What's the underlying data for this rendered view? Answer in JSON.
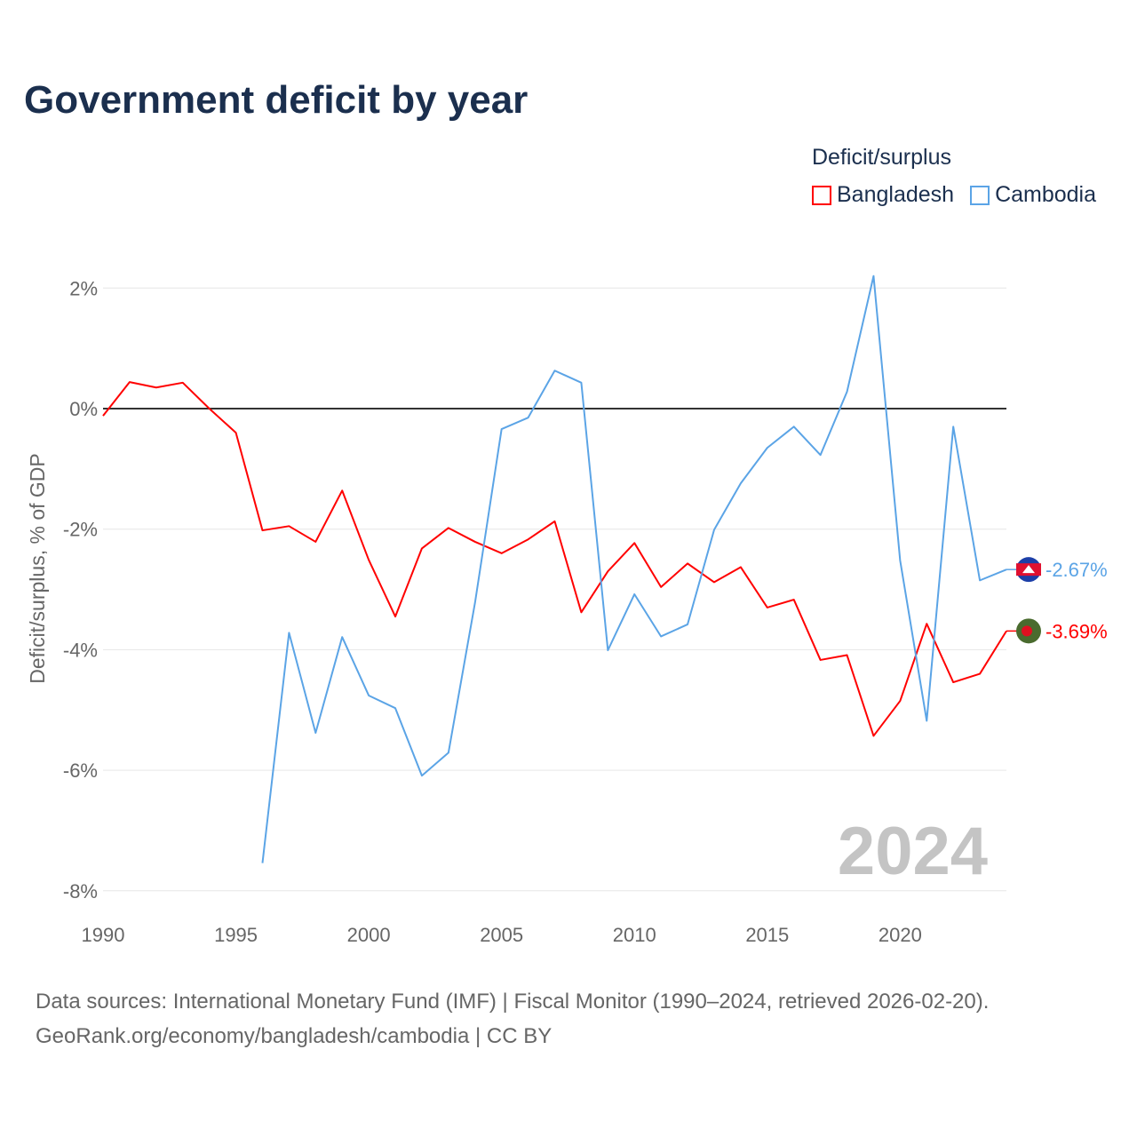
{
  "title": "Government deficit by year",
  "legend": {
    "title": "Deficit/surplus",
    "items": [
      {
        "label": "Bangladesh",
        "color": "#ff0000"
      },
      {
        "label": "Cambodia",
        "color": "#5ba4e6"
      }
    ]
  },
  "watermark_year": "2024",
  "source_line1": "Data sources: International Monetary Fund (IMF) | Fiscal Monitor (1990–2024, retrieved 2026-02-20).",
  "source_line2": "GeoRank.org/economy/bangladesh/cambodia | CC BY",
  "chart_data": {
    "type": "line",
    "title": "Government deficit by year",
    "xlabel": "",
    "ylabel": "Deficit/surplus, % of GDP",
    "xlim": [
      1990,
      2024
    ],
    "ylim": [
      -8,
      2
    ],
    "x_ticks": [
      1990,
      1995,
      2000,
      2005,
      2010,
      2015,
      2020
    ],
    "x_tick_labels": [
      "1990",
      "1995",
      "2000",
      "2005",
      "2010",
      "2015",
      "2020"
    ],
    "y_ticks": [
      2,
      0,
      -2,
      -4,
      -6,
      -8
    ],
    "y_tick_labels": [
      "2%",
      "0%",
      "-2%",
      "-4%",
      "-6%",
      "-8%"
    ],
    "grid": true,
    "legend_position": "top-right",
    "series": [
      {
        "name": "Bangladesh",
        "color": "#ff0000",
        "end_label": "-3.69%",
        "x": [
          1990,
          1991,
          1992,
          1993,
          1994,
          1995,
          1996,
          1997,
          1998,
          1999,
          2000,
          2001,
          2002,
          2003,
          2004,
          2005,
          2006,
          2007,
          2008,
          2009,
          2010,
          2011,
          2012,
          2013,
          2014,
          2015,
          2016,
          2017,
          2018,
          2019,
          2020,
          2021,
          2022,
          2023,
          2024
        ],
        "values": [
          -0.12,
          0.44,
          0.35,
          0.43,
          0.0,
          -0.4,
          -2.02,
          -1.95,
          -2.21,
          -1.36,
          -2.51,
          -3.45,
          -2.32,
          -1.98,
          -2.21,
          -2.4,
          -2.17,
          -1.87,
          -3.38,
          -2.7,
          -2.23,
          -2.96,
          -2.57,
          -2.88,
          -2.63,
          -3.3,
          -3.17,
          -4.17,
          -4.09,
          -5.43,
          -4.85,
          -3.57,
          -4.54,
          -4.4,
          -3.69
        ]
      },
      {
        "name": "Cambodia",
        "color": "#5ba4e6",
        "end_label": "-2.67%",
        "x": [
          1996,
          1997,
          1998,
          1999,
          2000,
          2001,
          2002,
          2003,
          2004,
          2005,
          2006,
          2007,
          2008,
          2009,
          2010,
          2011,
          2012,
          2013,
          2014,
          2015,
          2016,
          2017,
          2018,
          2019,
          2020,
          2021,
          2022,
          2023,
          2024
        ],
        "values": [
          -7.54,
          -3.72,
          -5.38,
          -3.79,
          -4.76,
          -4.97,
          -6.09,
          -5.71,
          -3.22,
          -0.34,
          -0.15,
          0.63,
          0.43,
          -4.01,
          -3.08,
          -3.78,
          -3.58,
          -2.01,
          -1.24,
          -0.65,
          -0.3,
          -0.77,
          0.28,
          2.2,
          -2.52,
          -5.18,
          -0.3,
          -2.85,
          -2.67
        ]
      }
    ]
  }
}
